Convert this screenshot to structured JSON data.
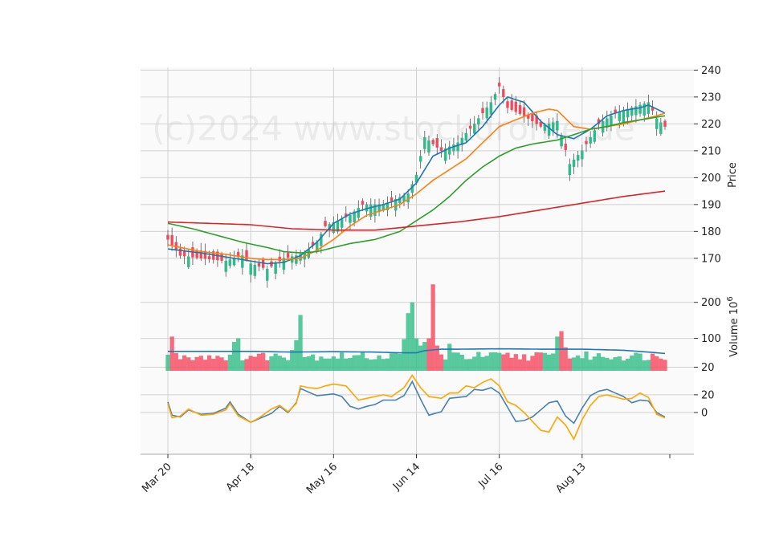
{
  "watermark": "(c)2024 www.stockdrome.de",
  "chart_data": {
    "type": "candlestick",
    "x_ticks": [
      "Mar 20",
      "Apr 18",
      "May 16",
      "Jun 14",
      "Jul 16",
      "Aug 13"
    ],
    "x_tick_index": [
      0,
      20,
      40,
      60,
      80,
      100
    ],
    "n": 121,
    "price": {
      "ylabel": "Price",
      "ylim": [
        161,
        241
      ],
      "yticks": [
        170,
        180,
        190,
        200,
        210,
        220,
        230,
        240
      ],
      "close_anchors": [
        [
          0,
          177
        ],
        [
          3,
          171
        ],
        [
          8,
          170
        ],
        [
          14,
          169
        ],
        [
          18,
          171
        ],
        [
          20,
          168
        ],
        [
          24,
          166
        ],
        [
          28,
          170
        ],
        [
          31,
          171
        ],
        [
          33,
          172
        ],
        [
          36,
          176
        ],
        [
          38,
          182
        ],
        [
          44,
          186
        ],
        [
          47,
          190
        ],
        [
          52,
          190
        ],
        [
          58,
          194
        ],
        [
          60,
          201
        ],
        [
          62,
          215
        ],
        [
          66,
          210
        ],
        [
          70,
          213
        ],
        [
          74,
          220
        ],
        [
          78,
          228
        ],
        [
          80,
          234
        ],
        [
          82,
          226
        ],
        [
          86,
          223
        ],
        [
          90,
          219
        ],
        [
          94,
          221
        ],
        [
          97,
          205
        ],
        [
          100,
          210
        ],
        [
          104,
          220
        ],
        [
          108,
          224
        ],
        [
          112,
          226
        ],
        [
          116,
          228
        ],
        [
          118,
          222
        ],
        [
          120,
          219
        ]
      ],
      "ma_lines": [
        {
          "color": "#1f77b4",
          "anchors": [
            [
              0,
              173.5
            ],
            [
              8,
              172
            ],
            [
              14,
              170.5
            ],
            [
              20,
              169
            ],
            [
              24,
              168
            ],
            [
              28,
              168.5
            ],
            [
              32,
              171
            ],
            [
              36,
              176
            ],
            [
              40,
              183
            ],
            [
              44,
              186.5
            ],
            [
              48,
              188.5
            ],
            [
              52,
              190
            ],
            [
              56,
              192
            ],
            [
              60,
              198
            ],
            [
              64,
              208
            ],
            [
              68,
              211
            ],
            [
              72,
              213
            ],
            [
              76,
              219
            ],
            [
              80,
              227
            ],
            [
              82,
              230
            ],
            [
              86,
              228
            ],
            [
              90,
              221
            ],
            [
              94,
              216
            ],
            [
              98,
              214.5
            ],
            [
              102,
              218
            ],
            [
              106,
              223
            ],
            [
              110,
              225
            ],
            [
              114,
              226
            ],
            [
              116,
              227
            ],
            [
              120,
              224
            ]
          ]
        },
        {
          "color": "#ff7f0e",
          "anchors": [
            [
              0,
              175
            ],
            [
              8,
              172.5
            ],
            [
              14,
              171.5
            ],
            [
              20,
              170
            ],
            [
              24,
              169.5
            ],
            [
              28,
              169.5
            ],
            [
              32,
              170
            ],
            [
              36,
              173
            ],
            [
              40,
              177
            ],
            [
              44,
              182
            ],
            [
              48,
              186
            ],
            [
              52,
              188
            ],
            [
              56,
              190
            ],
            [
              60,
              194
            ],
            [
              64,
              199
            ],
            [
              68,
              203
            ],
            [
              72,
              207
            ],
            [
              76,
              213
            ],
            [
              80,
              219
            ],
            [
              84,
              221.5
            ],
            [
              88,
              224
            ],
            [
              92,
              225.5
            ],
            [
              94,
              225
            ],
            [
              98,
              219
            ],
            [
              102,
              218
            ],
            [
              106,
              219
            ],
            [
              110,
              220
            ],
            [
              114,
              221.5
            ],
            [
              118,
              223
            ],
            [
              120,
              224
            ]
          ]
        },
        {
          "color": "#2ca02c",
          "anchors": [
            [
              0,
              183
            ],
            [
              6,
              181
            ],
            [
              12,
              178.5
            ],
            [
              18,
              176
            ],
            [
              24,
              174
            ],
            [
              28,
              172.5
            ],
            [
              32,
              172
            ],
            [
              36,
              172.5
            ],
            [
              40,
              174
            ],
            [
              44,
              175.5
            ],
            [
              50,
              177
            ],
            [
              56,
              180
            ],
            [
              60,
              184
            ],
            [
              64,
              188
            ],
            [
              68,
              193
            ],
            [
              72,
              199
            ],
            [
              76,
              204
            ],
            [
              80,
              208
            ],
            [
              84,
              211
            ],
            [
              88,
              212.5
            ],
            [
              94,
              214
            ],
            [
              98,
              216
            ],
            [
              102,
              218
            ],
            [
              106,
              219
            ],
            [
              110,
              220.5
            ],
            [
              114,
              221.5
            ],
            [
              118,
              222.5
            ],
            [
              120,
              223
            ]
          ]
        },
        {
          "color": "#d62728",
          "anchors": [
            [
              0,
              183.5
            ],
            [
              10,
              183
            ],
            [
              20,
              182.5
            ],
            [
              30,
              181
            ],
            [
              40,
              180.5
            ],
            [
              50,
              180.5
            ],
            [
              60,
              182
            ],
            [
              70,
              183.5
            ],
            [
              80,
              185.5
            ],
            [
              90,
              188
            ],
            [
              100,
              190.5
            ],
            [
              110,
              193
            ],
            [
              120,
              195
            ]
          ]
        }
      ]
    },
    "volume": {
      "ylabel": "Volume  10^6",
      "ylim": [
        10,
        255
      ],
      "yticks": [
        20,
        100,
        200
      ],
      "avg_anchors": [
        [
          0,
          64
        ],
        [
          20,
          64
        ],
        [
          30,
          62
        ],
        [
          40,
          63
        ],
        [
          50,
          62
        ],
        [
          56,
          60
        ],
        [
          60,
          60
        ],
        [
          62,
          66
        ],
        [
          66,
          70
        ],
        [
          70,
          70
        ],
        [
          80,
          71
        ],
        [
          90,
          70
        ],
        [
          100,
          70
        ],
        [
          110,
          67
        ],
        [
          116,
          62
        ],
        [
          120,
          58
        ]
      ],
      "spikes": [
        [
          1,
          105
        ],
        [
          16,
          90
        ],
        [
          17,
          100
        ],
        [
          30,
          68
        ],
        [
          31,
          95
        ],
        [
          32,
          165
        ],
        [
          57,
          98
        ],
        [
          58,
          170
        ],
        [
          59,
          200
        ],
        [
          60,
          100
        ],
        [
          61,
          80
        ],
        [
          62,
          90
        ],
        [
          63,
          100
        ],
        [
          64,
          250
        ],
        [
          65,
          80
        ],
        [
          68,
          85
        ],
        [
          94,
          105
        ],
        [
          95,
          120
        ],
        [
          96,
          75
        ]
      ]
    },
    "oscillator": {
      "ylim": [
        -47,
        47
      ],
      "yticks": [
        0,
        20
      ],
      "series": [
        {
          "color": "#4682b4",
          "anchors": [
            [
              0,
              12
            ],
            [
              1,
              -3
            ],
            [
              3,
              -5
            ],
            [
              5,
              3
            ],
            [
              8,
              -2
            ],
            [
              11,
              -1
            ],
            [
              14,
              5
            ],
            [
              15,
              12
            ],
            [
              17,
              -2
            ],
            [
              20,
              -11
            ],
            [
              22,
              -7
            ],
            [
              25,
              -1
            ],
            [
              27,
              7
            ],
            [
              29,
              0
            ],
            [
              31,
              11
            ],
            [
              32,
              27
            ],
            [
              34,
              23
            ],
            [
              36,
              19
            ],
            [
              40,
              21
            ],
            [
              42,
              18
            ],
            [
              44,
              7
            ],
            [
              46,
              4
            ],
            [
              48,
              7
            ],
            [
              50,
              9
            ],
            [
              52,
              14
            ],
            [
              55,
              14
            ],
            [
              57,
              19
            ],
            [
              59,
              35
            ],
            [
              61,
              15
            ],
            [
              63,
              -3
            ],
            [
              66,
              1
            ],
            [
              68,
              16
            ],
            [
              70,
              17
            ],
            [
              72,
              18
            ],
            [
              74,
              26
            ],
            [
              76,
              25
            ],
            [
              78,
              28
            ],
            [
              80,
              22
            ],
            [
              82,
              6
            ],
            [
              84,
              -10
            ],
            [
              86,
              -9
            ],
            [
              88,
              -5
            ],
            [
              90,
              3
            ],
            [
              92,
              11
            ],
            [
              94,
              13
            ],
            [
              96,
              -4
            ],
            [
              98,
              -12
            ],
            [
              100,
              5
            ],
            [
              102,
              19
            ],
            [
              104,
              24
            ],
            [
              106,
              26
            ],
            [
              110,
              18
            ],
            [
              112,
              11
            ],
            [
              114,
              14
            ],
            [
              116,
              13
            ],
            [
              118,
              0
            ],
            [
              120,
              -5
            ]
          ]
        },
        {
          "color": "#ffa500",
          "anchors": [
            [
              0,
              10
            ],
            [
              1,
              -6
            ],
            [
              3,
              -4
            ],
            [
              5,
              4
            ],
            [
              8,
              -3
            ],
            [
              11,
              -2
            ],
            [
              14,
              3
            ],
            [
              15,
              10
            ],
            [
              17,
              -4
            ],
            [
              20,
              -11
            ],
            [
              22,
              -6
            ],
            [
              25,
              4
            ],
            [
              27,
              8
            ],
            [
              29,
              1
            ],
            [
              31,
              10
            ],
            [
              32,
              30
            ],
            [
              34,
              28
            ],
            [
              36,
              27
            ],
            [
              38,
              30
            ],
            [
              40,
              32
            ],
            [
              43,
              30
            ],
            [
              46,
              14
            ],
            [
              48,
              16
            ],
            [
              52,
              20
            ],
            [
              54,
              18
            ],
            [
              57,
              28
            ],
            [
              59,
              42
            ],
            [
              61,
              28
            ],
            [
              63,
              18
            ],
            [
              66,
              16
            ],
            [
              68,
              22
            ],
            [
              70,
              22
            ],
            [
              72,
              30
            ],
            [
              74,
              28
            ],
            [
              76,
              34
            ],
            [
              78,
              38
            ],
            [
              80,
              30
            ],
            [
              82,
              12
            ],
            [
              84,
              8
            ],
            [
              86,
              0
            ],
            [
              88,
              -10
            ],
            [
              90,
              -20
            ],
            [
              92,
              -22
            ],
            [
              94,
              -5
            ],
            [
              96,
              -14
            ],
            [
              98,
              -30
            ],
            [
              100,
              -8
            ],
            [
              102,
              8
            ],
            [
              104,
              18
            ],
            [
              106,
              20
            ],
            [
              110,
              15
            ],
            [
              112,
              16
            ],
            [
              114,
              22
            ],
            [
              116,
              17
            ],
            [
              118,
              -2
            ],
            [
              120,
              -6
            ]
          ]
        }
      ]
    }
  }
}
